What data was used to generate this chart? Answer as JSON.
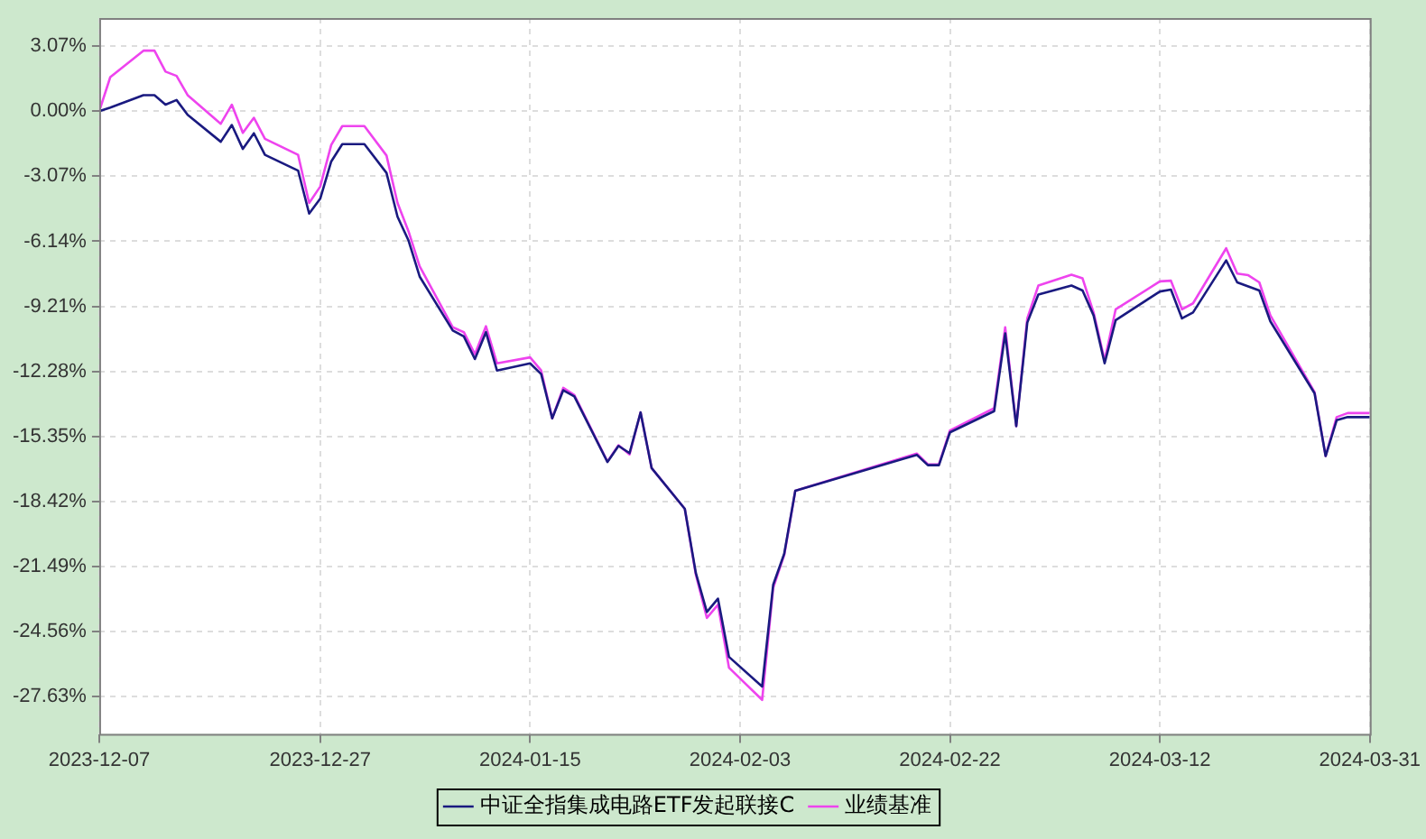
{
  "chart_data": {
    "type": "line",
    "x": [
      "2023-12-07",
      "2023-12-08",
      "2023-12-11",
      "2023-12-12",
      "2023-12-13",
      "2023-12-14",
      "2023-12-15",
      "2023-12-18",
      "2023-12-19",
      "2023-12-20",
      "2023-12-21",
      "2023-12-22",
      "2023-12-25",
      "2023-12-26",
      "2023-12-27",
      "2023-12-28",
      "2023-12-29",
      "2023-12-31",
      "2024-01-02",
      "2024-01-03",
      "2024-01-04",
      "2024-01-05",
      "2024-01-08",
      "2024-01-09",
      "2024-01-10",
      "2024-01-11",
      "2024-01-12",
      "2024-01-15",
      "2024-01-16",
      "2024-01-17",
      "2024-01-18",
      "2024-01-19",
      "2024-01-22",
      "2024-01-23",
      "2024-01-24",
      "2024-01-25",
      "2024-01-26",
      "2024-01-29",
      "2024-01-30",
      "2024-01-31",
      "2024-02-01",
      "2024-02-02",
      "2024-02-05",
      "2024-02-06",
      "2024-02-07",
      "2024-02-08",
      "2024-02-19",
      "2024-02-20",
      "2024-02-21",
      "2024-02-22",
      "2024-02-26",
      "2024-02-27",
      "2024-02-28",
      "2024-02-29",
      "2024-03-01",
      "2024-03-04",
      "2024-03-05",
      "2024-03-06",
      "2024-03-07",
      "2024-03-08",
      "2024-03-12",
      "2024-03-13",
      "2024-03-14",
      "2024-03-15",
      "2024-03-18",
      "2024-03-19",
      "2024-03-20",
      "2024-03-21",
      "2024-03-22",
      "2024-03-26",
      "2024-03-27",
      "2024-03-28",
      "2024-03-29",
      "2024-03-31"
    ],
    "series": [
      {
        "name": "中证全指集成电路ETF发起联接C",
        "color": "#1a1a80",
        "values": [
          0.0,
          0.17,
          0.76,
          0.76,
          0.31,
          0.53,
          -0.17,
          -1.44,
          -0.65,
          -1.78,
          -1.04,
          -2.06,
          -2.8,
          -4.83,
          -4.13,
          -2.37,
          -1.55,
          -1.55,
          -2.91,
          -4.98,
          -6.11,
          -7.8,
          -10.35,
          -10.63,
          -11.7,
          -10.43,
          -12.24,
          -11.9,
          -12.41,
          -14.5,
          -13.17,
          -13.46,
          -16.56,
          -15.8,
          -16.14,
          -14.22,
          -16.85,
          -18.77,
          -21.8,
          -23.64,
          -23.01,
          -25.76,
          -27.16,
          -22.36,
          -20.89,
          -17.92,
          -16.22,
          -16.71,
          -16.71,
          -15.16,
          -14.16,
          -10.49,
          -14.87,
          -9.98,
          -8.65,
          -8.23,
          -8.46,
          -9.64,
          -11.9,
          -9.86,
          -8.51,
          -8.42,
          -9.78,
          -9.5,
          -7.04,
          -8.08,
          -8.27,
          -8.46,
          -9.92,
          -13.32,
          -16.28,
          -14.59,
          -14.44,
          -14.44
        ]
      },
      {
        "name": "业绩基准",
        "color": "#ee44ee",
        "values": [
          0.0,
          1.61,
          2.86,
          2.86,
          1.87,
          1.67,
          0.76,
          -0.59,
          0.31,
          -1.02,
          -0.31,
          -1.3,
          -2.06,
          -4.33,
          -3.56,
          -1.59,
          -0.7,
          -0.7,
          -2.09,
          -4.33,
          -5.68,
          -7.32,
          -10.2,
          -10.43,
          -11.47,
          -10.15,
          -11.9,
          -11.62,
          -12.24,
          -14.5,
          -13.06,
          -13.4,
          -16.54,
          -15.77,
          -16.2,
          -14.22,
          -16.85,
          -18.77,
          -21.88,
          -23.92,
          -23.3,
          -26.27,
          -27.79,
          -22.5,
          -20.95,
          -17.92,
          -16.16,
          -16.67,
          -16.67,
          -15.07,
          -14.02,
          -10.2,
          -14.87,
          -9.78,
          -8.23,
          -7.72,
          -7.89,
          -9.5,
          -11.76,
          -9.35,
          -8.03,
          -8.0,
          -9.35,
          -9.07,
          -6.47,
          -7.66,
          -7.74,
          -8.08,
          -9.64,
          -13.26,
          -16.28,
          -14.44,
          -14.25,
          -14.25
        ]
      }
    ],
    "xlim": [
      "2023-12-07",
      "2024-03-31"
    ],
    "xticks": [
      "2023-12-07",
      "2023-12-27",
      "2024-01-15",
      "2024-02-03",
      "2024-02-22",
      "2024-03-12",
      "2024-03-31"
    ],
    "ylim": [
      -29.4,
      4.4
    ],
    "yticks": [
      {
        "value": 3.07,
        "label": "3.07%"
      },
      {
        "value": 0,
        "label": "0.00%"
      },
      {
        "value": -3.07,
        "label": "-3.07%"
      },
      {
        "value": -6.14,
        "label": "-6.14%"
      },
      {
        "value": -9.21,
        "label": "-9.21%"
      },
      {
        "value": -12.28,
        "label": "-12.28%"
      },
      {
        "value": -15.35,
        "label": "-15.35%"
      },
      {
        "value": -18.42,
        "label": "-18.42%"
      },
      {
        "value": -21.49,
        "label": "-21.49%"
      },
      {
        "value": -24.56,
        "label": "-24.56%"
      },
      {
        "value": -27.63,
        "label": "-27.63%"
      }
    ],
    "grid": true,
    "legend": "bottom",
    "marker": "none",
    "line_style": "solid"
  }
}
